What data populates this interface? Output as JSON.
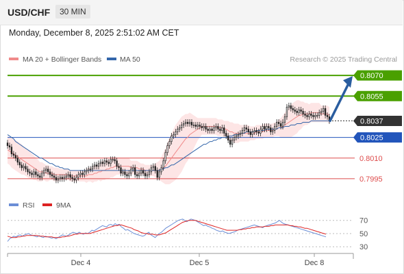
{
  "header": {
    "pair": "USD/CHF",
    "timeframe": "30 MIN"
  },
  "datetime": "Monday, December 8, 2025 2:51:02 AM CET",
  "legend": {
    "ma20": "MA 20 + Bollinger Bands",
    "ma50": "MA 50",
    "credit": "Research © 2025 Trading Central"
  },
  "rsi_legend": {
    "rsi": "RSI",
    "ma9": "9MA"
  },
  "colors": {
    "green": "#4aa000",
    "blue": "#2255bb",
    "red": "#dd4b4b",
    "band": "#fde0e0",
    "ma20": "#f08a8a",
    "ma50": "#3366aa",
    "rsi": "#6b8ed6",
    "rsi_ma": "#dd2222",
    "current": "#333333",
    "arrow": "#2a5d9f"
  },
  "chart_data": [
    {
      "type": "candlestick",
      "title": "USD/CHF",
      "timeframe": "30 MIN",
      "x_ticks": [
        "Dec 4",
        "Dec 5",
        "Dec 8"
      ],
      "ylim": [
        0.7988,
        0.8078
      ],
      "levels": [
        {
          "label": "0.8070",
          "value": 0.807,
          "kind": "resistance",
          "color": "#4aa000",
          "style": "tag"
        },
        {
          "label": "0.8055",
          "value": 0.8055,
          "kind": "resistance",
          "color": "#4aa000",
          "style": "tag"
        },
        {
          "label": "0.8037",
          "value": 0.8037,
          "kind": "current",
          "color": "#333333",
          "style": "tag"
        },
        {
          "label": "0.8025",
          "value": 0.8025,
          "kind": "pivot",
          "color": "#2255bb",
          "style": "tag"
        },
        {
          "label": "0.8010",
          "value": 0.801,
          "kind": "support",
          "color": "#dd4b4b",
          "style": "text"
        },
        {
          "label": "0.7995",
          "value": 0.7995,
          "kind": "support",
          "color": "#dd4b4b",
          "style": "text"
        }
      ],
      "close": [
        0.8019,
        0.8018,
        0.8013,
        0.8012,
        0.801,
        0.8007,
        0.8005,
        0.8003,
        0.8004,
        0.8002,
        0.8,
        0.7999,
        0.7998,
        0.8,
        0.7998,
        0.7997,
        0.7996,
        0.7999,
        0.8001,
        0.8002,
        0.8,
        0.7998,
        0.7997,
        0.7996,
        0.7994,
        0.7995,
        0.7996,
        0.7995,
        0.7996,
        0.7997,
        0.7998,
        0.7996,
        0.7995,
        0.7994,
        0.7996,
        0.7998,
        0.7999,
        0.7998,
        0.8,
        0.8001,
        0.8002,
        0.8002,
        0.8004,
        0.8005,
        0.8004,
        0.8006,
        0.8007,
        0.8006,
        0.8008,
        0.8007,
        0.8006,
        0.8009,
        0.8009,
        0.8008,
        0.8004,
        0.8003,
        0.7999,
        0.8,
        0.7998,
        0.7997,
        0.7999,
        0.8002,
        0.8003,
        0.7998,
        0.7997,
        0.7999,
        0.8001,
        0.7999,
        0.7997,
        0.7998,
        0.8,
        0.8003,
        0.8004,
        0.8001,
        0.7996,
        0.8,
        0.8003,
        0.8008,
        0.8014,
        0.8019,
        0.8022,
        0.8026,
        0.8027,
        0.8029,
        0.8031,
        0.8032,
        0.8034,
        0.8035,
        0.8036,
        0.8035,
        0.8036,
        0.8034,
        0.8034,
        0.8033,
        0.8034,
        0.8033,
        0.8032,
        0.8033,
        0.8031,
        0.803,
        0.8031,
        0.803,
        0.8032,
        0.8033,
        0.8031,
        0.803,
        0.8032,
        0.8028,
        0.8026,
        0.8023,
        0.802,
        0.8023,
        0.8025,
        0.8026,
        0.8027,
        0.8028,
        0.803,
        0.8032,
        0.8031,
        0.8029,
        0.8027,
        0.8029,
        0.803,
        0.8029,
        0.8028,
        0.8031,
        0.8033,
        0.8031,
        0.8033,
        0.8032,
        0.8029,
        0.803,
        0.8033,
        0.8036,
        0.8035,
        0.8033,
        0.8036,
        0.804,
        0.8047,
        0.8048,
        0.8046,
        0.8045,
        0.8044,
        0.8043,
        0.8045,
        0.8044,
        0.8042,
        0.8041,
        0.804,
        0.8042,
        0.8041,
        0.804,
        0.8041,
        0.8041,
        0.8043,
        0.8044,
        0.8046,
        0.8041,
        0.804,
        0.8037
      ],
      "ma20": [
        0.8016,
        0.8015,
        0.8014,
        0.8013,
        0.8012,
        0.8011,
        0.801,
        0.8009,
        0.8008,
        0.8007,
        0.8006,
        0.8005,
        0.8004,
        0.8003,
        0.8002,
        0.8001,
        0.8,
        0.8,
        0.8,
        0.7999,
        0.7999,
        0.7999,
        0.7999,
        0.7998,
        0.7998,
        0.7998,
        0.7998,
        0.7998,
        0.7998,
        0.7998,
        0.7998,
        0.7997,
        0.7997,
        0.7997,
        0.7997,
        0.7997,
        0.7997,
        0.7997,
        0.7997,
        0.7997,
        0.7998,
        0.7998,
        0.7998,
        0.7999,
        0.7999,
        0.8,
        0.8,
        0.8001,
        0.8001,
        0.8002,
        0.8002,
        0.8003,
        0.8003,
        0.8004,
        0.8004,
        0.8004,
        0.8004,
        0.8004,
        0.8004,
        0.8004,
        0.8004,
        0.8003,
        0.8003,
        0.8003,
        0.8003,
        0.8002,
        0.8002,
        0.8002,
        0.8001,
        0.8001,
        0.8001,
        0.8001,
        0.8001,
        0.8001,
        0.8001,
        0.8001,
        0.8002,
        0.8003,
        0.8004,
        0.8006,
        0.8008,
        0.801,
        0.8012,
        0.8014,
        0.8016,
        0.8018,
        0.802,
        0.8022,
        0.8024,
        0.8025,
        0.8027,
        0.8028,
        0.8029,
        0.803,
        0.8031,
        0.8032,
        0.8033,
        0.8033,
        0.8033,
        0.8033,
        0.8033,
        0.8033,
        0.8033,
        0.8033,
        0.8032,
        0.8032,
        0.8032,
        0.8031,
        0.8031,
        0.803,
        0.8029,
        0.8029,
        0.8028,
        0.8028,
        0.8028,
        0.8028,
        0.8028,
        0.8028,
        0.8028,
        0.8028,
        0.8028,
        0.8028,
        0.8028,
        0.8029,
        0.8029,
        0.8029,
        0.8029,
        0.803,
        0.803,
        0.803,
        0.803,
        0.803,
        0.8031,
        0.8031,
        0.8032,
        0.8032,
        0.8033,
        0.8034,
        0.8035,
        0.8036,
        0.8037,
        0.8038,
        0.8039,
        0.804,
        0.8041,
        0.8041,
        0.8042,
        0.8042,
        0.8042,
        0.8042,
        0.8043,
        0.8043,
        0.8043,
        0.8043,
        0.8043,
        0.8042,
        0.8042,
        0.8042,
        0.8042,
        0.8041
      ],
      "bollinger_halfwidth": [
        0.001,
        0.001,
        0.0011,
        0.0011,
        0.0011,
        0.0011,
        0.0011,
        0.0011,
        0.001,
        0.001,
        0.001,
        0.001,
        0.0009,
        0.0009,
        0.0008,
        0.0008,
        0.0007,
        0.0007,
        0.0006,
        0.0006,
        0.0006,
        0.0005,
        0.0005,
        0.0005,
        0.0005,
        0.0005,
        0.0004,
        0.0004,
        0.0004,
        0.0004,
        0.0004,
        0.0004,
        0.0004,
        0.0004,
        0.0004,
        0.0004,
        0.0004,
        0.0004,
        0.0004,
        0.0005,
        0.0005,
        0.0005,
        0.0006,
        0.0006,
        0.0006,
        0.0006,
        0.0007,
        0.0007,
        0.0007,
        0.0007,
        0.0007,
        0.0007,
        0.0007,
        0.0007,
        0.0006,
        0.0006,
        0.0006,
        0.0006,
        0.0006,
        0.0006,
        0.0006,
        0.0005,
        0.0005,
        0.0005,
        0.0005,
        0.0005,
        0.0004,
        0.0004,
        0.0004,
        0.0004,
        0.0004,
        0.0004,
        0.0004,
        0.0005,
        0.0006,
        0.0007,
        0.0009,
        0.0011,
        0.0013,
        0.0015,
        0.0017,
        0.0018,
        0.0019,
        0.002,
        0.002,
        0.002,
        0.002,
        0.0019,
        0.0018,
        0.0017,
        0.0016,
        0.0014,
        0.0012,
        0.001,
        0.0008,
        0.0007,
        0.0006,
        0.0006,
        0.0006,
        0.0006,
        0.0006,
        0.0006,
        0.0006,
        0.0006,
        0.0006,
        0.0006,
        0.0006,
        0.0006,
        0.0006,
        0.0007,
        0.0007,
        0.0007,
        0.0007,
        0.0007,
        0.0007,
        0.0006,
        0.0006,
        0.0006,
        0.0006,
        0.0006,
        0.0005,
        0.0005,
        0.0005,
        0.0005,
        0.0005,
        0.0005,
        0.0005,
        0.0005,
        0.0005,
        0.0005,
        0.0005,
        0.0005,
        0.0005,
        0.0005,
        0.0006,
        0.0007,
        0.0008,
        0.0009,
        0.001,
        0.0011,
        0.0012,
        0.0012,
        0.0012,
        0.0012,
        0.0011,
        0.001,
        0.0009,
        0.0008,
        0.0008,
        0.0007,
        0.0007,
        0.0007,
        0.0007,
        0.0007,
        0.0007,
        0.0006,
        0.0006,
        0.0006,
        0.0006,
        0.0006,
        0.0006
      ],
      "ma50": [
        0.8027,
        0.8026,
        0.8025,
        0.8024,
        0.8022,
        0.8021,
        0.802,
        0.8019,
        0.8018,
        0.8017,
        0.8016,
        0.8015,
        0.8014,
        0.8013,
        0.8012,
        0.8011,
        0.801,
        0.801,
        0.8009,
        0.8008,
        0.8007,
        0.8006,
        0.8006,
        0.8005,
        0.8004,
        0.8004,
        0.8003,
        0.8003,
        0.8002,
        0.8002,
        0.8002,
        0.8001,
        0.8001,
        0.8001,
        0.8001,
        0.8001,
        0.8001,
        0.8001,
        0.8001,
        0.8001,
        0.8001,
        0.8001,
        0.8001,
        0.8001,
        0.8001,
        0.8001,
        0.8001,
        0.8001,
        0.8001,
        0.8001,
        0.8001,
        0.8001,
        0.8001,
        0.8001,
        0.8001,
        0.8001,
        0.8001,
        0.8001,
        0.8001,
        0.8001,
        0.8001,
        0.8001,
        0.8001,
        0.8001,
        0.8001,
        0.8001,
        0.8001,
        0.8001,
        0.8001,
        0.8001,
        0.8001,
        0.8001,
        0.8001,
        0.8001,
        0.8001,
        0.8001,
        0.8002,
        0.8002,
        0.8003,
        0.8003,
        0.8004,
        0.8005,
        0.8005,
        0.8006,
        0.8007,
        0.8008,
        0.8009,
        0.801,
        0.8011,
        0.8012,
        0.8013,
        0.8014,
        0.8015,
        0.8016,
        0.8017,
        0.8018,
        0.8019,
        0.802,
        0.802,
        0.8021,
        0.8022,
        0.8022,
        0.8023,
        0.8023,
        0.8024,
        0.8024,
        0.8025,
        0.8025,
        0.8025,
        0.8026,
        0.8026,
        0.8026,
        0.8027,
        0.8027,
        0.8027,
        0.8028,
        0.8028,
        0.8028,
        0.8029,
        0.8029,
        0.8029,
        0.8029,
        0.8029,
        0.803,
        0.803,
        0.803,
        0.803,
        0.803,
        0.8031,
        0.8031,
        0.8031,
        0.8031,
        0.8031,
        0.8031,
        0.8032,
        0.8032,
        0.8032,
        0.8033,
        0.8033,
        0.8033,
        0.8034,
        0.8034,
        0.8034,
        0.8035,
        0.8035,
        0.8035,
        0.8036,
        0.8036,
        0.8036,
        0.8036,
        0.8037,
        0.8037,
        0.8037,
        0.8037,
        0.8037,
        0.8037,
        0.8037,
        0.8037,
        0.8037,
        0.8037
      ],
      "forecast": {
        "from": 0.8037,
        "to": 0.807
      }
    },
    {
      "type": "line",
      "title": "RSI",
      "series": [
        {
          "name": "RSI",
          "values": [
            38,
            42,
            44,
            46,
            45,
            47,
            48,
            46,
            48,
            49,
            50,
            48,
            47,
            46,
            45,
            47,
            45,
            44,
            46,
            45,
            44,
            43,
            44,
            42,
            44,
            46,
            48,
            47,
            46,
            48,
            50,
            52,
            51,
            50,
            52,
            50,
            49,
            51,
            50,
            52,
            55,
            54,
            56,
            58,
            60,
            62,
            61,
            60,
            63,
            64,
            62,
            65,
            63,
            64,
            60,
            58,
            55,
            56,
            54,
            52,
            50,
            49,
            48,
            47,
            46,
            47,
            50,
            52,
            48,
            46,
            44,
            47,
            50,
            52,
            55,
            58,
            60,
            62,
            64,
            66,
            68,
            70,
            71,
            72,
            70,
            68,
            70,
            72,
            71,
            70,
            68,
            66,
            64,
            62,
            63,
            61,
            60,
            58,
            57,
            55,
            54,
            53,
            54,
            52,
            51,
            50,
            51,
            52,
            53,
            55,
            56,
            57,
            58,
            59,
            60,
            61,
            62,
            63,
            62,
            61,
            60,
            59,
            61,
            62,
            63,
            64,
            65,
            66,
            68,
            70,
            67,
            65,
            64,
            63,
            62,
            61,
            60,
            59,
            58,
            57,
            56,
            55,
            54,
            53,
            52,
            51,
            50,
            49,
            48,
            47,
            46,
            45
          ]
        },
        {
          "name": "9MA",
          "values": [
            46,
            45,
            44,
            44,
            44,
            45,
            45,
            46,
            46,
            47,
            47,
            47,
            47,
            47,
            47,
            46,
            46,
            46,
            45,
            45,
            45,
            45,
            44,
            44,
            44,
            44,
            45,
            45,
            46,
            46,
            47,
            48,
            49,
            49,
            50,
            50,
            50,
            50,
            50,
            50,
            51,
            52,
            53,
            54,
            55,
            56,
            57,
            58,
            59,
            60,
            61,
            62,
            62,
            63,
            63,
            62,
            61,
            60,
            59,
            58,
            56,
            55,
            54,
            52,
            51,
            50,
            50,
            49,
            49,
            49,
            48,
            48,
            48,
            49,
            50,
            51,
            53,
            55,
            57,
            59,
            61,
            63,
            65,
            67,
            68,
            69,
            70,
            70,
            70,
            70,
            69,
            68,
            67,
            66,
            65,
            64,
            63,
            62,
            61,
            60,
            59,
            58,
            57,
            56,
            55,
            55,
            55,
            55,
            55,
            55,
            56,
            56,
            57,
            57,
            58,
            58,
            59,
            59,
            60,
            60,
            60,
            60,
            61,
            61,
            61,
            62,
            62,
            63,
            63,
            63,
            63,
            63,
            63,
            63,
            62,
            62,
            61,
            61,
            60,
            60,
            59,
            58,
            58,
            57,
            56,
            55,
            54,
            53,
            52,
            51,
            50,
            49
          ]
        }
      ],
      "ylim": [
        25,
        78
      ],
      "y_ticks": [
        70,
        50,
        30
      ]
    }
  ]
}
